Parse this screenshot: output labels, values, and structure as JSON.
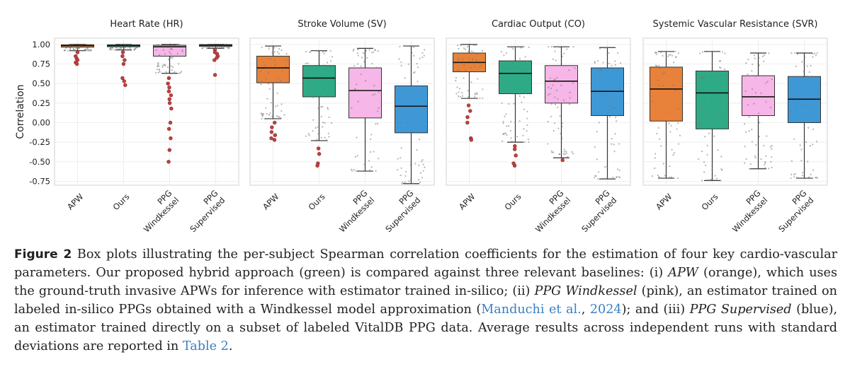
{
  "chart_data": {
    "type": "box",
    "ylabel": "Correlation",
    "ylim": [
      -0.8,
      1.08
    ],
    "yticks": [
      "1.00",
      "0.75",
      "0.50",
      "0.25",
      "0.00",
      "-0.25",
      "-0.50",
      "-0.75"
    ],
    "categories": [
      [
        "APW"
      ],
      [
        "Ours"
      ],
      [
        "PPG",
        "Windkessel"
      ],
      [
        "PPG",
        "Supervised"
      ]
    ],
    "colors": [
      "#e8823a",
      "#2eab86",
      "#f6b6e7",
      "#3f98d6"
    ],
    "grid": true,
    "panels": [
      {
        "title": "Heart Rate (HR)",
        "boxes": [
          {
            "q1": 0.965,
            "median": 0.985,
            "q3": 0.995,
            "whislo": 0.92,
            "whishi": 1.0,
            "outliers": [
              0.9,
              0.85,
              0.82,
              0.8,
              0.77,
              0.75
            ]
          },
          {
            "q1": 0.97,
            "median": 0.985,
            "q3": 0.995,
            "whislo": 0.93,
            "whishi": 1.0,
            "outliers": [
              0.9,
              0.85,
              0.8,
              0.75,
              0.57,
              0.53,
              0.48
            ]
          },
          {
            "q1": 0.85,
            "median": 0.97,
            "q3": 0.99,
            "whislo": 0.63,
            "whishi": 1.0,
            "outliers": [
              0.57,
              0.5,
              0.45,
              0.4,
              0.35,
              0.3,
              0.25,
              0.18,
              0.0,
              -0.08,
              -0.2,
              -0.35,
              -0.5
            ]
          },
          {
            "q1": 0.975,
            "median": 0.99,
            "q3": 0.998,
            "whislo": 0.95,
            "whishi": 1.0,
            "outliers": [
              0.93,
              0.9,
              0.88,
              0.85,
              0.83,
              0.8,
              0.61
            ]
          }
        ]
      },
      {
        "title": "Stroke Volume (SV)",
        "boxes": [
          {
            "q1": 0.51,
            "median": 0.7,
            "q3": 0.85,
            "whislo": 0.05,
            "whishi": 0.98,
            "outliers": [
              0.0,
              -0.06,
              -0.12,
              -0.16,
              -0.2,
              -0.22
            ]
          },
          {
            "q1": 0.33,
            "median": 0.57,
            "q3": 0.73,
            "whislo": -0.23,
            "whishi": 0.92,
            "outliers": [
              -0.33,
              -0.4,
              -0.52,
              -0.55
            ]
          },
          {
            "q1": 0.06,
            "median": 0.41,
            "q3": 0.7,
            "whislo": -0.62,
            "whishi": 0.95,
            "outliers": []
          },
          {
            "q1": -0.13,
            "median": 0.21,
            "q3": 0.47,
            "whislo": -0.78,
            "whishi": 0.98,
            "outliers": []
          }
        ]
      },
      {
        "title": "Cardiac Output (CO)",
        "boxes": [
          {
            "q1": 0.65,
            "median": 0.77,
            "q3": 0.89,
            "whislo": 0.31,
            "whishi": 1.0,
            "outliers": [
              0.22,
              0.15,
              0.07,
              0.0,
              -0.2,
              -0.22
            ]
          },
          {
            "q1": 0.37,
            "median": 0.63,
            "q3": 0.79,
            "whislo": -0.25,
            "whishi": 0.97,
            "outliers": [
              -0.3,
              -0.34,
              -0.42,
              -0.52,
              -0.55
            ]
          },
          {
            "q1": 0.25,
            "median": 0.53,
            "q3": 0.73,
            "whislo": -0.45,
            "whishi": 0.97,
            "outliers": [
              -0.48
            ]
          },
          {
            "q1": 0.09,
            "median": 0.4,
            "q3": 0.7,
            "whislo": -0.72,
            "whishi": 0.96,
            "outliers": []
          }
        ]
      },
      {
        "title": "Systemic Vascular Resistance (SVR)",
        "boxes": [
          {
            "q1": 0.02,
            "median": 0.43,
            "q3": 0.71,
            "whislo": -0.71,
            "whishi": 0.91,
            "outliers": []
          },
          {
            "q1": -0.08,
            "median": 0.38,
            "q3": 0.66,
            "whislo": -0.74,
            "whishi": 0.91,
            "outliers": []
          },
          {
            "q1": 0.09,
            "median": 0.33,
            "q3": 0.6,
            "whislo": -0.59,
            "whishi": 0.89,
            "outliers": []
          },
          {
            "q1": 0.0,
            "median": 0.3,
            "q3": 0.59,
            "whislo": -0.71,
            "whishi": 0.89,
            "outliers": []
          }
        ]
      }
    ]
  },
  "caption": {
    "label": "Figure 2",
    "text_1": " Box plots illustrating the per-subject Spearman correlation coefficients for the estimation of four key cardio-vascular parameters. Our proposed hybrid approach (green) is compared against three relevant baselines: (i) ",
    "apw": "APW",
    "text_2": " (orange), which uses the ground-truth invasive APWs for inference with estimator trained in-silico; (ii) ",
    "ppg_wk": "PPG Windkessel",
    "text_3": " (pink), an estimator trained on labeled in-silico PPGs obtained with a Windkessel model approximation (",
    "cite_name": "Manduchi et al.",
    "cite_sep": ", ",
    "cite_year": "2024",
    "text_4": "); and (iii) ",
    "ppg_sup": "PPG Supervised",
    "text_5": " (blue), an estimator trained directly on a subset of labeled VitalDB PPG data. Average results across independent runs with standard deviations are reported in ",
    "table_ref": "Table 2",
    "text_6": "."
  }
}
